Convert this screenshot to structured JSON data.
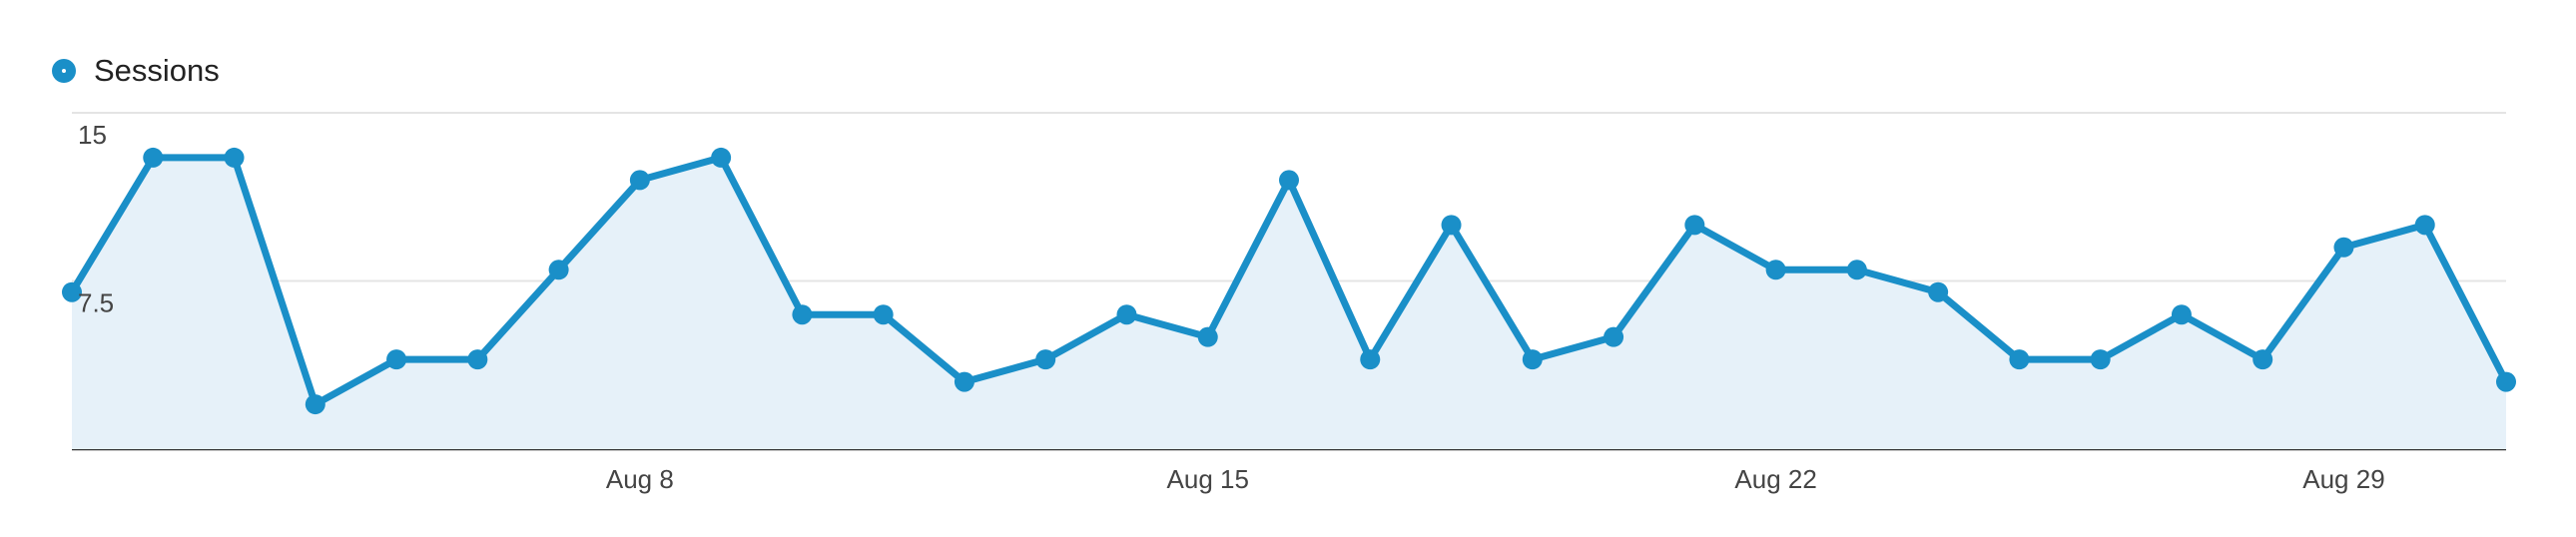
{
  "legend": {
    "series_name": "Sessions",
    "color": "#1a8fc8"
  },
  "chart_data": {
    "type": "area",
    "x": [
      "Aug 1",
      "Aug 2",
      "Aug 3",
      "Aug 4",
      "Aug 5",
      "Aug 6",
      "Aug 7",
      "Aug 8",
      "Aug 9",
      "Aug 10",
      "Aug 11",
      "Aug 12",
      "Aug 13",
      "Aug 14",
      "Aug 15",
      "Aug 16",
      "Aug 17",
      "Aug 18",
      "Aug 19",
      "Aug 20",
      "Aug 21",
      "Aug 22",
      "Aug 23",
      "Aug 24",
      "Aug 25",
      "Aug 26",
      "Aug 27",
      "Aug 28",
      "Aug 29",
      "Aug 30",
      "Aug 31"
    ],
    "series": [
      {
        "name": "Sessions",
        "values": [
          7,
          13,
          13,
          2,
          4,
          4,
          8,
          12,
          13,
          6,
          6,
          3,
          4,
          6,
          5,
          12,
          4,
          10,
          4,
          5,
          10,
          8,
          8,
          7,
          4,
          4,
          6,
          4,
          9,
          10,
          3
        ]
      }
    ],
    "x_tick_labels": [
      "Aug 8",
      "Aug 15",
      "Aug 22",
      "Aug 29"
    ],
    "y_tick_labels": [
      "15",
      "7.5"
    ],
    "ylim": [
      0,
      15
    ],
    "line_color": "#1a8fc8",
    "fill_color": "#e6f1f9",
    "grid": true
  }
}
